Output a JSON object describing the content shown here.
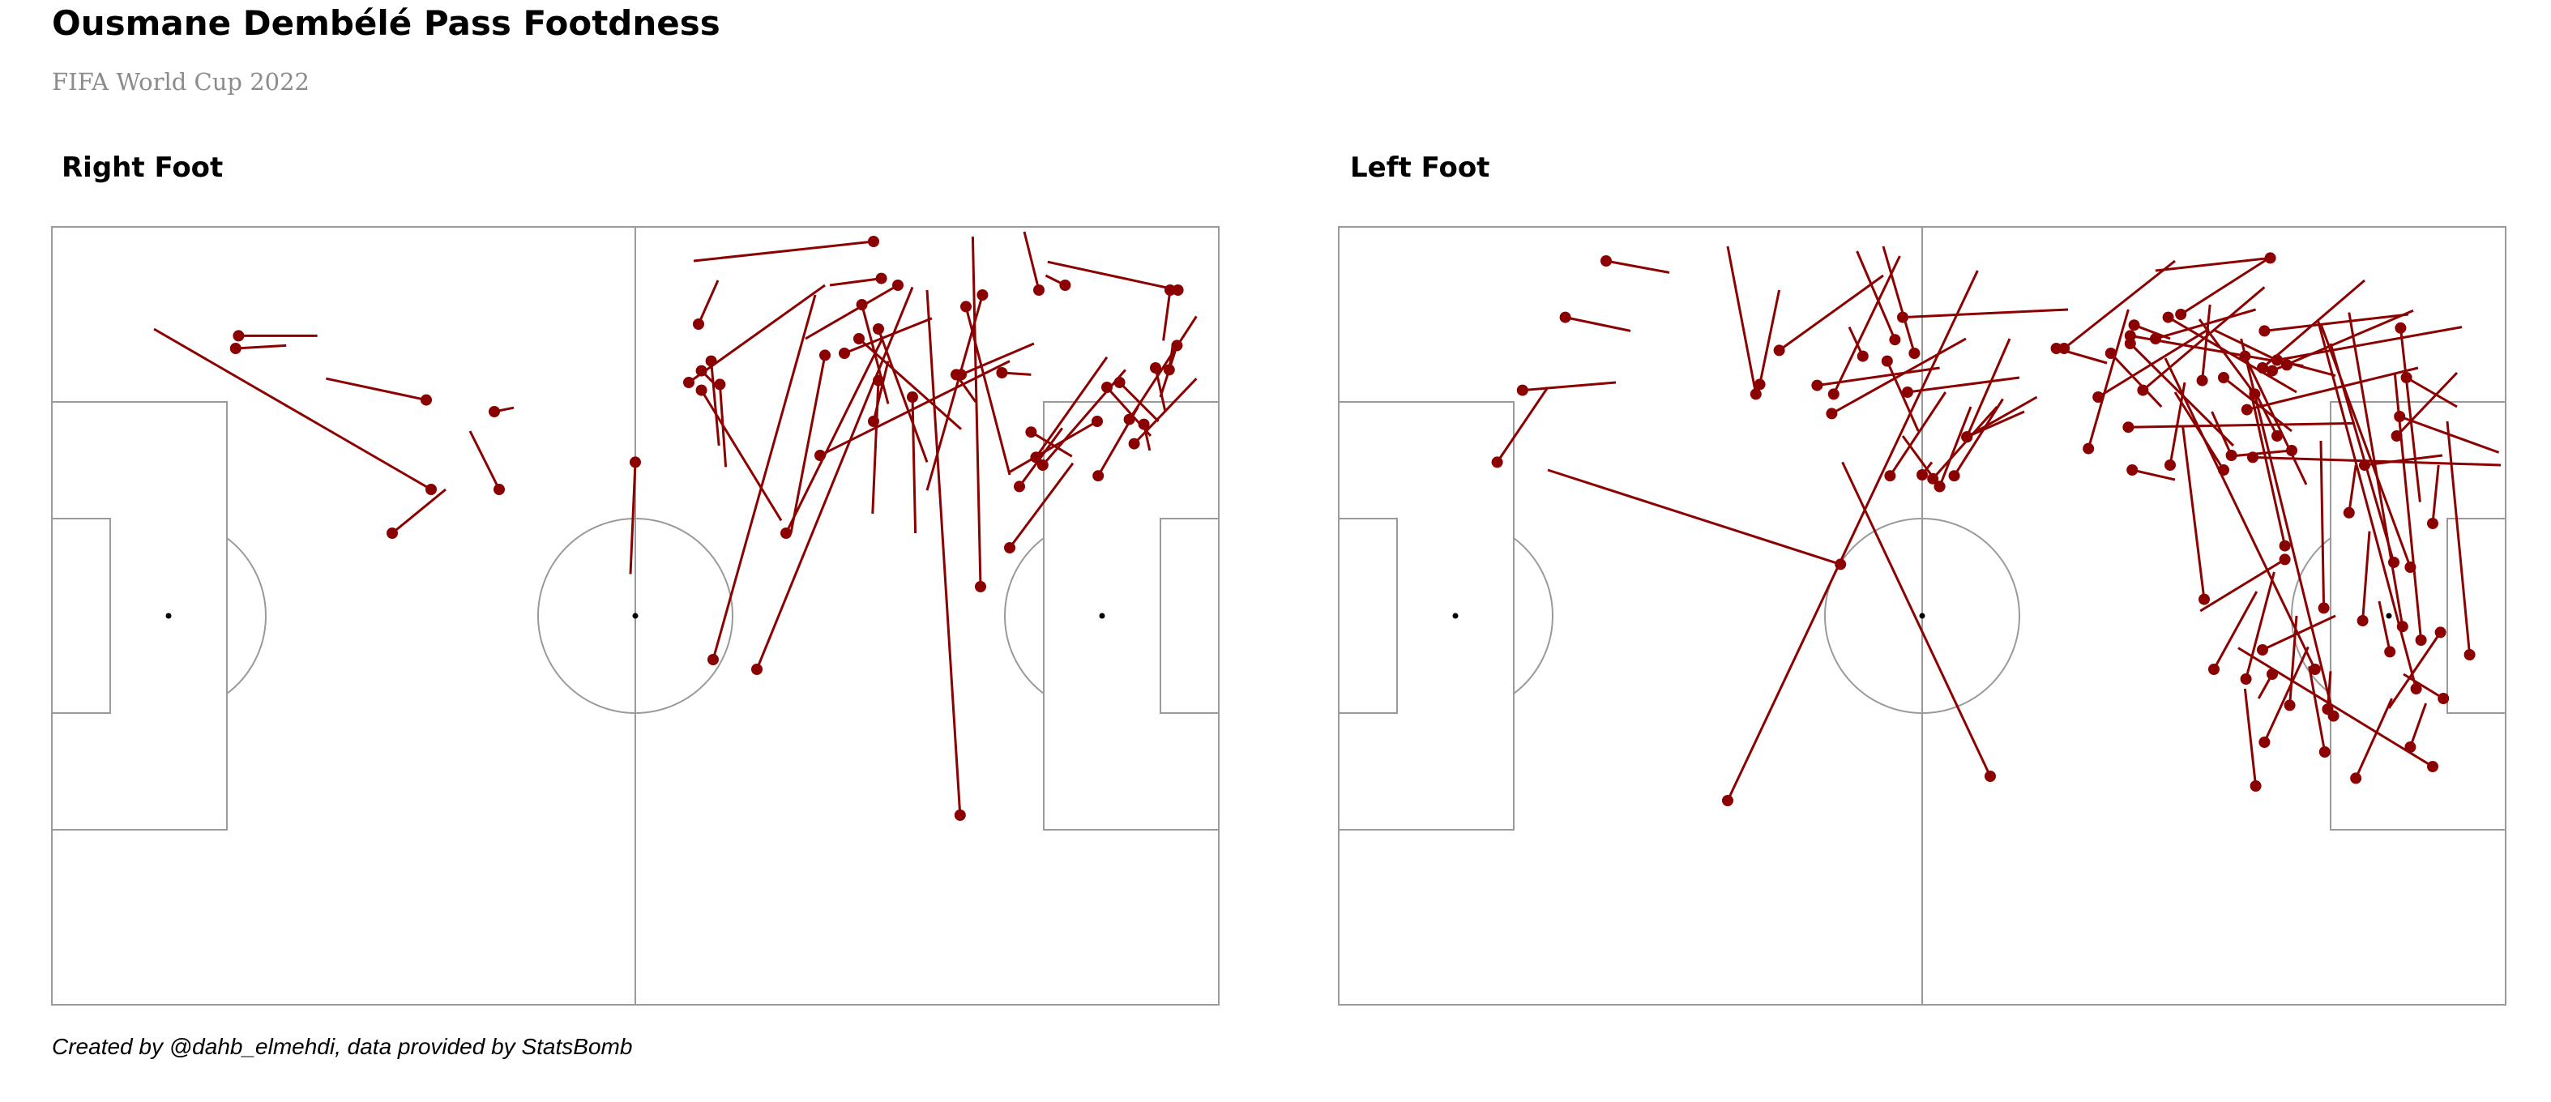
{
  "header": {
    "title": "Ousmane Dembélé Pass Footdness",
    "subtitle": "FIFA World Cup 2022",
    "footer": "Created by @dahb_elmehdi, data provided by StatsBomb"
  },
  "colors": {
    "pass": "#8b0000",
    "pitch_lines": "#9a9a9a",
    "background": "#ffffff",
    "subtitle": "#8c8c8c"
  },
  "chart_data": [
    {
      "type": "scatter",
      "title": "Right Foot",
      "pitch": "StatsBomb 120x80",
      "xlim": [
        0,
        120
      ],
      "ylim": [
        0,
        80
      ],
      "passes": [
        [
          39,
          27,
          10.5,
          10.5
        ],
        [
          45.5,
          19,
          47.5,
          18.6
        ],
        [
          35,
          31.5,
          40.5,
          27
        ],
        [
          46,
          27,
          43,
          21
        ],
        [
          38.5,
          17.8,
          28.2,
          15.6
        ],
        [
          18.9,
          12.5,
          24.1,
          12.2
        ],
        [
          19.2,
          11.2,
          27.3,
          11.2
        ],
        [
          60,
          24.2,
          59.5,
          35.7
        ],
        [
          68,
          44.5,
          78.5,
          7
        ],
        [
          72.5,
          45.5,
          88.5,
          6.2
        ],
        [
          93.4,
          60.5,
          90,
          6.5
        ],
        [
          79,
          23.5,
          98.5,
          13.8
        ],
        [
          84.5,
          20,
          86,
          13.8
        ],
        [
          75.5,
          31.5,
          85.5,
          11.3
        ],
        [
          81.5,
          13,
          90.5,
          9.4
        ],
        [
          85,
          15.8,
          84.4,
          29.5
        ],
        [
          88.5,
          17.5,
          88.8,
          31.5
        ],
        [
          67.8,
          13.8,
          68.6,
          22.5
        ],
        [
          68.7,
          16.2,
          69.3,
          24.7
        ],
        [
          65.5,
          16,
          79.5,
          6
        ],
        [
          66.8,
          16.8,
          75,
          30.2
        ],
        [
          79.5,
          13.2,
          76,
          31.5
        ],
        [
          85,
          10.5,
          90,
          24.2
        ],
        [
          83,
          11.5,
          93.5,
          20.8
        ],
        [
          83.3,
          8,
          86,
          18.2
        ],
        [
          94,
          8.2,
          98.5,
          25.5
        ],
        [
          95.7,
          7,
          90,
          27.1
        ],
        [
          87,
          6,
          77.5,
          11.5
        ],
        [
          85.3,
          5.3,
          80,
          6
        ],
        [
          104.2,
          6,
          102.2,
          5
        ],
        [
          101.5,
          6.5,
          100,
          0.5
        ],
        [
          115.7,
          12.2,
          114,
          17.5
        ],
        [
          115.8,
          6.5,
          102.4,
          3.6
        ],
        [
          115,
          6.5,
          114.3,
          11.7
        ],
        [
          111.3,
          22.3,
          117.7,
          15.6
        ],
        [
          110.8,
          19.8,
          117.7,
          9.2
        ],
        [
          97.7,
          15,
          100.7,
          15.2
        ],
        [
          93.5,
          15.2,
          101,
          12
        ],
        [
          98.5,
          33,
          105,
          24.3
        ],
        [
          95.5,
          37,
          94.7,
          1
        ],
        [
          93,
          15.2,
          95,
          18
        ],
        [
          100.7,
          21.1,
          104.9,
          23.6
        ],
        [
          99.5,
          26.7,
          103.9,
          20.7
        ],
        [
          101.2,
          23.7,
          108.5,
          13.4
        ],
        [
          101.9,
          24.5,
          110.4,
          14.7
        ],
        [
          108.5,
          16.5,
          113,
          21.5
        ],
        [
          107.6,
          25.6,
          111.7,
          18.5
        ],
        [
          107.5,
          20,
          98.5,
          25.2
        ],
        [
          109.8,
          16,
          113.8,
          20
        ],
        [
          113.5,
          14.5,
          114.5,
          19
        ],
        [
          114.9,
          14.7,
          115.3,
          12
        ],
        [
          112.3,
          20.3,
          112.9,
          23
        ],
        [
          66.5,
          10,
          68.5,
          5.5
        ],
        [
          84.5,
          1.5,
          66,
          3.5
        ],
        [
          66.8,
          14.8,
          68.5,
          16.5
        ]
      ]
    },
    {
      "type": "scatter",
      "title": "Left Foot",
      "pitch": "StatsBomb 120x80",
      "xlim": [
        0,
        120
      ],
      "ylim": [
        0,
        80
      ],
      "passes": [
        [
          16.3,
          24.2,
          21.5,
          16.5
        ],
        [
          18.9,
          16.8,
          28.5,
          16
        ],
        [
          23.3,
          9.3,
          30,
          10.7
        ],
        [
          27.5,
          3.5,
          34,
          4.7
        ],
        [
          40,
          59,
          65.7,
          4.5
        ],
        [
          51.6,
          34.7,
          21.5,
          25
        ],
        [
          67,
          56.5,
          51.8,
          24.2
        ],
        [
          61.1,
          25.9,
          67.7,
          18.5
        ],
        [
          42.9,
          17.2,
          40,
          2
        ],
        [
          43.3,
          16.2,
          45.3,
          6.5
        ],
        [
          45.3,
          12.7,
          56,
          5
        ],
        [
          50.7,
          19.2,
          64.5,
          11.5
        ],
        [
          49.2,
          16.3,
          61.8,
          14.5
        ],
        [
          50.9,
          17.2,
          57.7,
          3
        ],
        [
          53.9,
          13.3,
          52.5,
          10.3
        ],
        [
          56.4,
          13.8,
          59.6,
          21
        ],
        [
          57.2,
          11.6,
          53.3,
          2.5
        ],
        [
          58,
          9.3,
          75,
          8.5
        ],
        [
          59.2,
          13,
          56,
          2
        ],
        [
          56.7,
          25.6,
          62.4,
          17
        ],
        [
          61.8,
          26.7,
          65,
          18.5
        ],
        [
          63.3,
          25.6,
          68.3,
          17.7
        ],
        [
          64.6,
          21.6,
          71.8,
          17.5
        ],
        [
          64.6,
          21.6,
          70.5,
          19
        ],
        [
          61.8,
          26.7,
          58,
          21.5
        ],
        [
          58.5,
          17,
          70,
          15.5
        ],
        [
          60,
          25.5,
          61,
          24.2
        ],
        [
          64.6,
          21.6,
          69,
          11.5
        ],
        [
          73.8,
          12.5,
          79,
          14
        ],
        [
          74.6,
          12.5,
          86,
          3.5
        ],
        [
          77.1,
          22.8,
          81.2,
          8.5
        ],
        [
          78.1,
          17.5,
          89.5,
          10.5
        ],
        [
          79.4,
          13,
          84.6,
          18.5
        ],
        [
          81.4,
          11.2,
          99.2,
          14.3
        ],
        [
          81.6,
          25,
          86,
          26
        ],
        [
          81.8,
          10.1,
          85.5,
          11.5
        ],
        [
          86.6,
          9,
          96,
          3
        ],
        [
          85.5,
          24.5,
          87,
          16
        ],
        [
          91.8,
          23.5,
          89.8,
          19
        ],
        [
          91,
          25,
          86,
          17
        ],
        [
          81.4,
          12,
          92,
          22.5
        ],
        [
          81.2,
          20.6,
          104.5,
          20.2
        ],
        [
          82.7,
          16.8,
          95.2,
          6.2
        ],
        [
          84,
          11.5,
          94.3,
          8.5
        ],
        [
          85.3,
          9.3,
          98.5,
          17
        ],
        [
          88.8,
          15.8,
          89.6,
          8
        ],
        [
          91,
          15.5,
          98,
          21
        ],
        [
          93.2,
          13.3,
          99.5,
          26.5
        ],
        [
          93.4,
          18.8,
          111,
          14.5
        ],
        [
          95,
          14.5,
          105.5,
          5.5
        ],
        [
          94.2,
          17.2,
          88.5,
          9.5
        ],
        [
          96,
          14.8,
          110.5,
          8.6
        ],
        [
          95.2,
          10.7,
          110,
          9
        ],
        [
          97.5,
          14.2,
          90,
          10.6
        ],
        [
          96.5,
          21.5,
          94.5,
          17.5
        ],
        [
          94,
          23.7,
          119.5,
          24.5
        ],
        [
          98,
          23,
          91.5,
          23.6
        ],
        [
          95.8,
          3.2,
          84,
          4.5
        ],
        [
          96.5,
          13.7,
          102.5,
          15.3
        ],
        [
          96.5,
          13.7,
          115.5,
          10.3
        ],
        [
          95,
          43.5,
          102.5,
          40
        ],
        [
          97.3,
          32.8,
          93.7,
          16.5
        ],
        [
          93.3,
          46.5,
          96.2,
          35.5
        ],
        [
          89,
          38.3,
          86.8,
          20.5
        ],
        [
          90,
          45.5,
          94.4,
          37.5
        ],
        [
          95.2,
          53,
          99.7,
          43.2
        ],
        [
          97.3,
          34.2,
          88.6,
          39.5
        ],
        [
          94.3,
          57.5,
          93.2,
          47.5
        ],
        [
          97.8,
          49.2,
          98.5,
          40
        ],
        [
          102.3,
          50.3,
          92.8,
          11.5
        ],
        [
          101.3,
          39.2,
          101,
          22
        ],
        [
          100.4,
          45.5,
          85,
          13.5
        ],
        [
          103.9,
          29.4,
          104.6,
          24.5
        ],
        [
          108.5,
          34.5,
          102,
          12
        ],
        [
          109.4,
          41.1,
          103.9,
          8.8
        ],
        [
          110.2,
          35,
          101,
          10
        ],
        [
          109.1,
          19.5,
          119.3,
          23.2
        ],
        [
          109.8,
          15.5,
          115,
          18.5
        ],
        [
          109.2,
          10.4,
          111.2,
          28.3
        ],
        [
          112.5,
          55.5,
          92.5,
          43.3
        ],
        [
          116.3,
          44,
          114,
          20
        ],
        [
          112.5,
          30.5,
          113.1,
          24.5
        ],
        [
          110.2,
          53.5,
          111.8,
          49
        ],
        [
          111.3,
          42.5,
          108.6,
          15
        ],
        [
          110.8,
          47.5,
          100.7,
          9.6
        ],
        [
          108.1,
          43.7,
          107,
          38.5
        ],
        [
          101.4,
          54,
          99.8,
          45.2
        ],
        [
          96,
          46,
          94.6,
          48.5
        ],
        [
          101.7,
          49.6,
          102,
          45.7
        ],
        [
          113.3,
          41.7,
          108,
          49.5
        ],
        [
          113.6,
          48.5,
          109.5,
          46
        ],
        [
          105.5,
          24.5,
          113.5,
          23.5
        ],
        [
          108.8,
          21.5,
          115,
          15
        ],
        [
          105.3,
          40.5,
          106,
          31.3
        ],
        [
          104.6,
          56.7,
          108.3,
          48.5
        ]
      ]
    }
  ]
}
